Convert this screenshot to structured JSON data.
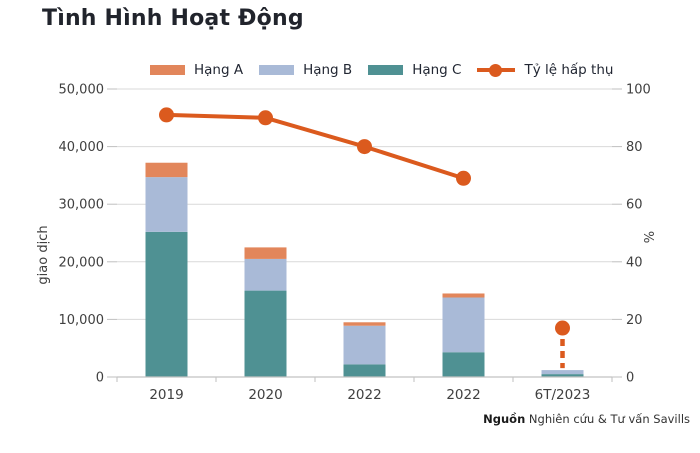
{
  "title": "Tình Hình Hoạt Động",
  "source": {
    "label_bold": "Nguồn",
    "label_rest": " Nghiên cứu & Tư vấn Savills"
  },
  "colors": {
    "title_text": "#21242C",
    "axis_text": "#404040",
    "gridline": "#D9D9D9",
    "axis_line": "#C2C2C2",
    "tick_line": "#BFBFBF",
    "background": "#FFFFFF"
  },
  "chart_data": {
    "type": "bar",
    "subtype": "stacked-bars-with-line-overlay",
    "categories": [
      "2019",
      "2020",
      "2022",
      "2022",
      "6T/2023"
    ],
    "series": [
      {
        "name": "Hạng A",
        "color": "#E2865B",
        "values": [
          2500,
          2000,
          600,
          700,
          0
        ]
      },
      {
        "name": "Hạng B",
        "color": "#A9BAD7",
        "values": [
          9500,
          5500,
          6700,
          9500,
          700
        ]
      },
      {
        "name": "Hạng C",
        "color": "#4F9193",
        "values": [
          25200,
          15000,
          2200,
          4300,
          500
        ]
      }
    ],
    "stack_order_bottom_to_top": [
      "Hạng C",
      "Hạng B",
      "Hạng A"
    ],
    "line_series": {
      "name": "Tỷ lệ hấp thụ",
      "color": "#DB5A1E",
      "values": [
        91,
        90,
        80,
        69,
        17
      ],
      "detached_last_point": true,
      "detached_point_style": "dashed drop line from marker to bar top"
    },
    "ylabel_left": "giao dịch",
    "ylim_left": [
      0,
      50000
    ],
    "yticks_left": [
      "0",
      "10,000",
      "20,000",
      "30,000",
      "40,000",
      "50,000"
    ],
    "ylabel_right": "%",
    "ylim_right": [
      0,
      100
    ],
    "yticks_right": [
      "0",
      "20",
      "40",
      "60",
      "80",
      "100"
    ],
    "legend_position": "top",
    "grid": "horizontal"
  }
}
